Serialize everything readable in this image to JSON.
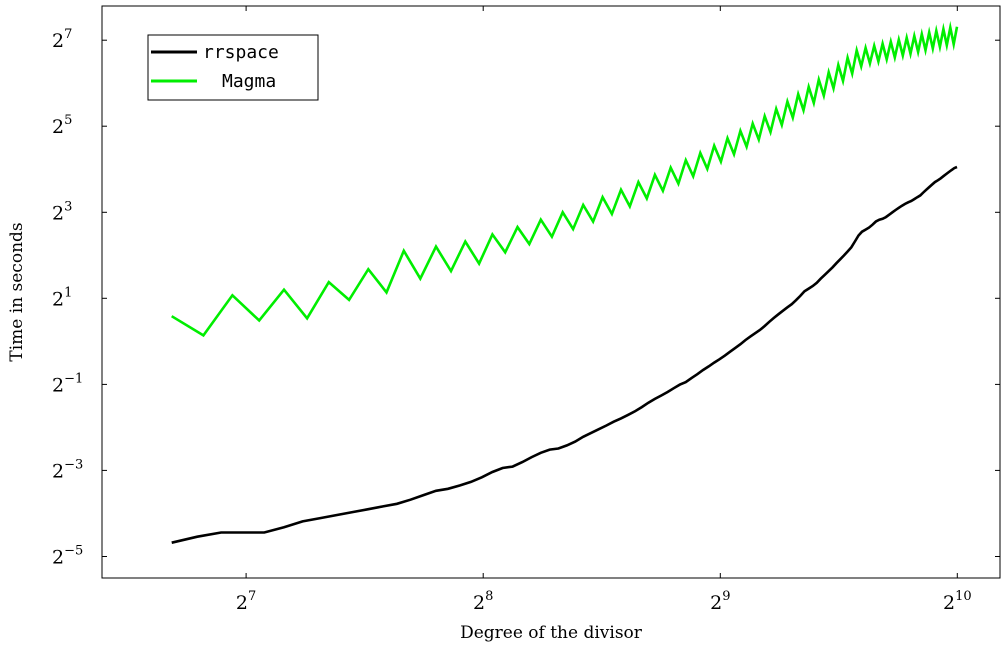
{
  "chart_data": {
    "type": "line",
    "xlabel": "Degree of the divisor",
    "ylabel": "Time in seconds",
    "xscale": "log2",
    "yscale": "log2",
    "xlim": [
      84,
      1160
    ],
    "ylim": [
      0.0221,
      222
    ],
    "xticks": [
      {
        "base": "2",
        "exp": "7",
        "value": 128
      },
      {
        "base": "2",
        "exp": "8",
        "value": 256
      },
      {
        "base": "2",
        "exp": "9",
        "value": 512
      },
      {
        "base": "2",
        "exp": "10",
        "value": 1024
      }
    ],
    "yticks": [
      {
        "base": "2",
        "exp": "−5",
        "value": 0.03125
      },
      {
        "base": "2",
        "exp": "−3",
        "value": 0.125
      },
      {
        "base": "2",
        "exp": "−1",
        "value": 0.5
      },
      {
        "base": "2",
        "exp": "1",
        "value": 2
      },
      {
        "base": "2",
        "exp": "3",
        "value": 8
      },
      {
        "base": "2",
        "exp": "5",
        "value": 32
      },
      {
        "base": "2",
        "exp": "7",
        "value": 128
      }
    ],
    "legend": {
      "position": "top-left"
    },
    "series": [
      {
        "name": "rrspace",
        "color": "#000000",
        "x": [
          103,
          111,
          119,
          127,
          135,
          143,
          151,
          159,
          167,
          175,
          183,
          191,
          199,
          207,
          215,
          223,
          231,
          239,
          247,
          255,
          263,
          271,
          279,
          287,
          295,
          303,
          311,
          319,
          327,
          335,
          343,
          351,
          359,
          367,
          375,
          383,
          391,
          399,
          407,
          415,
          423,
          431,
          439,
          447,
          455,
          463,
          471,
          479,
          487,
          495,
          503,
          511,
          519,
          527,
          535,
          543,
          551,
          559,
          567,
          575,
          583,
          591,
          599,
          607,
          615,
          623,
          631,
          639,
          647,
          655,
          663,
          671,
          679,
          687,
          695,
          703,
          711,
          719,
          727,
          735,
          743,
          751,
          759,
          767,
          775,
          783,
          791,
          799,
          807,
          815,
          823,
          831,
          839,
          847,
          855,
          863,
          871,
          879,
          887,
          895,
          903,
          911,
          919,
          927,
          935,
          943,
          951,
          959,
          967,
          975,
          983,
          991,
          999,
          1007,
          1015,
          1023
        ],
        "y": [
          0.039,
          0.043,
          0.046,
          0.046,
          0.046,
          0.05,
          0.055,
          0.058,
          0.061,
          0.064,
          0.067,
          0.07,
          0.073,
          0.078,
          0.084,
          0.09,
          0.093,
          0.098,
          0.104,
          0.112,
          0.122,
          0.13,
          0.133,
          0.143,
          0.155,
          0.166,
          0.175,
          0.178,
          0.187,
          0.199,
          0.215,
          0.229,
          0.243,
          0.258,
          0.274,
          0.289,
          0.306,
          0.324,
          0.347,
          0.372,
          0.396,
          0.418,
          0.442,
          0.47,
          0.498,
          0.519,
          0.555,
          0.59,
          0.63,
          0.668,
          0.71,
          0.75,
          0.795,
          0.847,
          0.9,
          0.955,
          1.02,
          1.08,
          1.14,
          1.2,
          1.28,
          1.37,
          1.46,
          1.55,
          1.64,
          1.73,
          1.82,
          1.94,
          2.08,
          2.24,
          2.34,
          2.44,
          2.57,
          2.75,
          2.92,
          3.1,
          3.3,
          3.52,
          3.75,
          3.99,
          4.25,
          4.55,
          5.0,
          5.5,
          5.85,
          6.05,
          6.25,
          6.55,
          6.9,
          7.1,
          7.2,
          7.4,
          7.7,
          8.0,
          8.3,
          8.6,
          8.9,
          9.15,
          9.4,
          9.6,
          9.9,
          10.2,
          10.5,
          11.0,
          11.5,
          12.0,
          12.5,
          13.0,
          13.4,
          13.8,
          14.3,
          14.8,
          15.3,
          15.8,
          16.3,
          16.6
        ]
      },
      {
        "name": "Magma",
        "color": "#00ee00",
        "x": [
          103,
          113,
          123,
          133,
          143,
          153,
          163,
          173,
          183,
          193,
          203,
          213,
          223,
          233,
          243,
          253,
          263,
          273,
          283,
          293,
          303,
          313,
          323,
          333,
          343,
          353,
          363,
          373,
          383,
          393,
          403,
          413,
          423,
          433,
          443,
          453,
          463,
          473,
          483,
          493,
          503,
          513,
          523,
          533,
          543,
          553,
          563,
          573,
          583,
          593,
          603,
          613,
          623,
          633,
          643,
          653,
          663,
          673,
          683,
          693,
          703,
          713,
          723,
          733,
          743,
          753,
          763,
          773,
          783,
          793,
          803,
          813,
          823,
          833,
          843,
          853,
          863,
          873,
          883,
          893,
          903,
          913,
          923,
          933,
          943,
          953,
          963,
          973,
          983,
          993,
          1003,
          1013,
          1023
        ],
        "y": [
          1.5,
          1.1,
          2.1,
          1.4,
          2.3,
          1.45,
          2.6,
          1.95,
          3.2,
          2.2,
          4.3,
          2.75,
          4.6,
          3.1,
          5.0,
          3.5,
          5.6,
          4.2,
          6.3,
          4.8,
          7.1,
          5.4,
          8.0,
          6.1,
          9.0,
          6.9,
          10.2,
          7.8,
          11.5,
          8.8,
          13.0,
          10.0,
          14.6,
          11.3,
          16.4,
          12.7,
          18.5,
          14.3,
          20.8,
          16.1,
          23.4,
          18.1,
          26.4,
          20.4,
          29.7,
          23.0,
          33.4,
          25.8,
          37.6,
          29.1,
          42.3,
          32.7,
          47.6,
          36.8,
          53.6,
          41.4,
          60.3,
          46.6,
          67.8,
          52.4,
          76.3,
          59.0,
          85.8,
          66.4,
          96.5,
          74.7,
          108.6,
          84.0,
          113.0,
          88.0,
          117.0,
          91.0,
          121.0,
          94.0,
          125.0,
          97.0,
          129.0,
          100.0,
          133.0,
          103.0,
          137.0,
          106.0,
          141.0,
          109.0,
          145.0,
          112.0,
          149.0,
          115.0,
          153.0,
          118.0,
          157.0,
          120.0,
          159.0
        ]
      }
    ]
  }
}
